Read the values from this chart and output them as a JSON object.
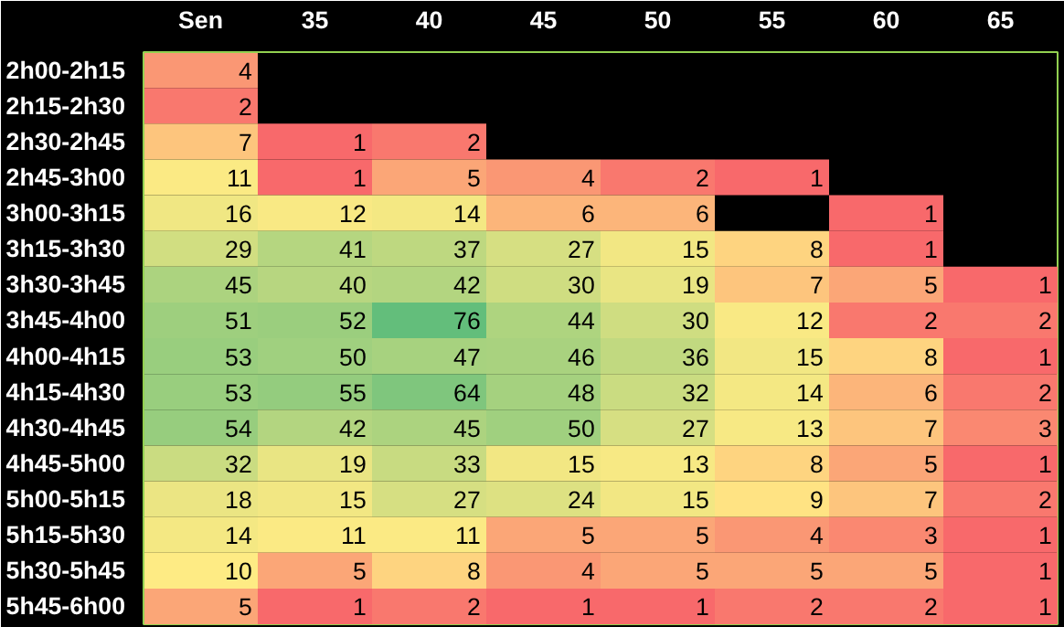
{
  "chart_data": {
    "type": "heatmap",
    "data_labels": true,
    "categories": [
      "Sen",
      "35",
      "40",
      "45",
      "50",
      "55",
      "60",
      "65"
    ],
    "y_categories": [
      "2h00-2h15",
      "2h15-2h30",
      "2h30-2h45",
      "2h45-3h00",
      "3h00-3h15",
      "3h15-3h30",
      "3h30-3h45",
      "3h45-4h00",
      "4h00-4h15",
      "4h15-4h30",
      "4h30-4h45",
      "4h45-5h00",
      "5h00-5h15",
      "5h15-5h30",
      "5h30-5h45",
      "5h45-6h00"
    ],
    "cells": [
      [
        4,
        null,
        null,
        null,
        null,
        null,
        null,
        null
      ],
      [
        2,
        null,
        null,
        null,
        null,
        null,
        null,
        null
      ],
      [
        7,
        1,
        2,
        null,
        null,
        null,
        null,
        null
      ],
      [
        11,
        1,
        5,
        4,
        2,
        1,
        null,
        null
      ],
      [
        16,
        12,
        14,
        6,
        6,
        null,
        1,
        null
      ],
      [
        29,
        41,
        37,
        27,
        15,
        8,
        1,
        null
      ],
      [
        45,
        40,
        42,
        30,
        19,
        7,
        5,
        1
      ],
      [
        51,
        52,
        76,
        44,
        30,
        12,
        2,
        2
      ],
      [
        53,
        50,
        47,
        46,
        36,
        15,
        8,
        1
      ],
      [
        53,
        55,
        64,
        48,
        32,
        14,
        6,
        2
      ],
      [
        54,
        42,
        45,
        50,
        27,
        13,
        7,
        3
      ],
      [
        32,
        19,
        33,
        15,
        13,
        8,
        5,
        1
      ],
      [
        18,
        15,
        27,
        24,
        15,
        9,
        7,
        2
      ],
      [
        14,
        11,
        11,
        5,
        5,
        4,
        3,
        1
      ],
      [
        10,
        5,
        8,
        4,
        5,
        5,
        5,
        1
      ],
      [
        5,
        1,
        2,
        1,
        1,
        2,
        2,
        1
      ]
    ]
  }
}
